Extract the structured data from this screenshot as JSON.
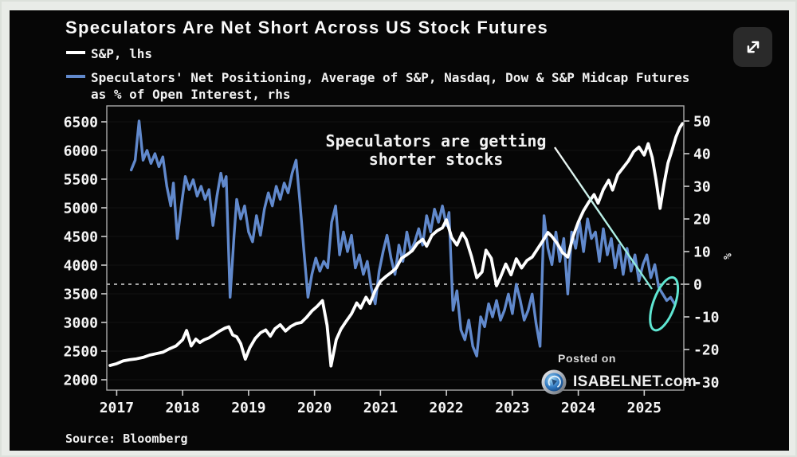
{
  "watermark": {
    "posted_on": "Posted on",
    "site": "ISABELNET.com"
  },
  "icons": {
    "expand": "diagonal-expand-arrows",
    "logo": "isabelnet-shield-swirl"
  },
  "colors": {
    "page_background": "#e9ece8",
    "chart_background": "#060606",
    "sp_line": "#ffffff",
    "speculators_line": "#6189cc",
    "highlight": "#5fe6d2",
    "zero_line": "#d8d8d8"
  },
  "chart_data": {
    "type": "line",
    "title": "Speculators Are Net Short Across US Stock Futures",
    "legend": [
      {
        "name": "S&P, lhs",
        "color": "#ffffff"
      },
      {
        "name": "Speculators' Net Positioning, Average of S&P, Nasdaq, Dow & S&P Midcap Futures\nas % of Open Interest, rhs",
        "color": "#6189cc"
      }
    ],
    "annotation": {
      "line1": "Speculators are getting",
      "line2": "shorter stocks"
    },
    "source": "Source: Bloomberg",
    "x_axis": {
      "ticks": [
        2017,
        2018,
        2019,
        2020,
        2021,
        2022,
        2023,
        2024,
        2025
      ]
    },
    "left_axis": {
      "series": "S&P index level",
      "ticks": [
        6500,
        6000,
        5500,
        5000,
        4500,
        4000,
        3500,
        3000,
        2500,
        2000
      ]
    },
    "right_axis": {
      "unit": "%",
      "ticks": [
        50,
        40,
        30,
        20,
        10,
        0,
        -10,
        -20,
        -30
      ],
      "zero_reference_line": true
    },
    "highlight": {
      "shape": "ellipse",
      "at_year": 2025.3,
      "at_value_rhs": -6,
      "color": "#5fe6d2"
    },
    "pointer_line": {
      "from": [
        684,
        172
      ],
      "to": [
        806,
        350
      ]
    },
    "series": [
      {
        "name": "S&P, lhs",
        "axis": "left",
        "color": "#ffffff",
        "points": [
          [
            2016.9,
            2250
          ],
          [
            2017.0,
            2280
          ],
          [
            2017.1,
            2330
          ],
          [
            2017.2,
            2350
          ],
          [
            2017.3,
            2365
          ],
          [
            2017.4,
            2390
          ],
          [
            2017.5,
            2430
          ],
          [
            2017.6,
            2455
          ],
          [
            2017.7,
            2480
          ],
          [
            2017.8,
            2540
          ],
          [
            2017.9,
            2590
          ],
          [
            2018.0,
            2700
          ],
          [
            2018.06,
            2860
          ],
          [
            2018.13,
            2590
          ],
          [
            2018.2,
            2710
          ],
          [
            2018.26,
            2650
          ],
          [
            2018.33,
            2700
          ],
          [
            2018.4,
            2730
          ],
          [
            2018.48,
            2790
          ],
          [
            2018.56,
            2850
          ],
          [
            2018.64,
            2900
          ],
          [
            2018.7,
            2925
          ],
          [
            2018.76,
            2780
          ],
          [
            2018.82,
            2750
          ],
          [
            2018.88,
            2630
          ],
          [
            2018.95,
            2360
          ],
          [
            2019.02,
            2560
          ],
          [
            2019.1,
            2720
          ],
          [
            2019.18,
            2820
          ],
          [
            2019.26,
            2870
          ],
          [
            2019.33,
            2760
          ],
          [
            2019.4,
            2890
          ],
          [
            2019.48,
            2960
          ],
          [
            2019.56,
            2850
          ],
          [
            2019.64,
            2930
          ],
          [
            2019.72,
            2980
          ],
          [
            2019.8,
            3000
          ],
          [
            2019.88,
            3090
          ],
          [
            2019.96,
            3200
          ],
          [
            2020.04,
            3280
          ],
          [
            2020.12,
            3380
          ],
          [
            2020.19,
            2950
          ],
          [
            2020.25,
            2240
          ],
          [
            2020.33,
            2700
          ],
          [
            2020.4,
            2880
          ],
          [
            2020.48,
            3020
          ],
          [
            2020.56,
            3150
          ],
          [
            2020.64,
            3340
          ],
          [
            2020.7,
            3250
          ],
          [
            2020.78,
            3440
          ],
          [
            2020.84,
            3330
          ],
          [
            2020.92,
            3560
          ],
          [
            2021.0,
            3720
          ],
          [
            2021.08,
            3800
          ],
          [
            2021.16,
            3870
          ],
          [
            2021.24,
            3950
          ],
          [
            2021.32,
            4120
          ],
          [
            2021.4,
            4180
          ],
          [
            2021.48,
            4250
          ],
          [
            2021.56,
            4380
          ],
          [
            2021.64,
            4450
          ],
          [
            2021.7,
            4330
          ],
          [
            2021.78,
            4520
          ],
          [
            2021.86,
            4600
          ],
          [
            2021.94,
            4650
          ],
          [
            2022.0,
            4790
          ],
          [
            2022.08,
            4480
          ],
          [
            2022.16,
            4350
          ],
          [
            2022.24,
            4560
          ],
          [
            2022.3,
            4450
          ],
          [
            2022.38,
            4150
          ],
          [
            2022.46,
            3780
          ],
          [
            2022.54,
            3880
          ],
          [
            2022.6,
            4260
          ],
          [
            2022.68,
            4120
          ],
          [
            2022.76,
            3640
          ],
          [
            2022.82,
            3790
          ],
          [
            2022.9,
            4020
          ],
          [
            2022.98,
            3830
          ],
          [
            2023.06,
            4110
          ],
          [
            2023.14,
            3950
          ],
          [
            2023.22,
            4080
          ],
          [
            2023.3,
            4140
          ],
          [
            2023.38,
            4280
          ],
          [
            2023.46,
            4420
          ],
          [
            2023.54,
            4570
          ],
          [
            2023.6,
            4500
          ],
          [
            2023.68,
            4380
          ],
          [
            2023.76,
            4220
          ],
          [
            2023.84,
            4140
          ],
          [
            2023.92,
            4500
          ],
          [
            2024.0,
            4750
          ],
          [
            2024.08,
            4950
          ],
          [
            2024.16,
            5100
          ],
          [
            2024.24,
            5230
          ],
          [
            2024.3,
            5080
          ],
          [
            2024.38,
            5320
          ],
          [
            2024.46,
            5480
          ],
          [
            2024.52,
            5310
          ],
          [
            2024.6,
            5580
          ],
          [
            2024.68,
            5700
          ],
          [
            2024.76,
            5820
          ],
          [
            2024.84,
            5980
          ],
          [
            2024.92,
            6060
          ],
          [
            2025.0,
            5920
          ],
          [
            2025.06,
            6120
          ],
          [
            2025.12,
            5880
          ],
          [
            2025.18,
            5480
          ],
          [
            2025.24,
            4990
          ],
          [
            2025.3,
            5420
          ],
          [
            2025.36,
            5780
          ],
          [
            2025.42,
            6000
          ],
          [
            2025.48,
            6230
          ],
          [
            2025.54,
            6400
          ],
          [
            2025.58,
            6470
          ]
        ]
      },
      {
        "name": "Speculators' Net Positioning, Average of S&P, Nasdaq, Dow & S&P Midcap Futures as % of Open Interest, rhs",
        "axis": "right",
        "color": "#6189cc",
        "points": [
          [
            2017.22,
            35
          ],
          [
            2017.28,
            38
          ],
          [
            2017.34,
            50
          ],
          [
            2017.4,
            38
          ],
          [
            2017.46,
            41
          ],
          [
            2017.52,
            37
          ],
          [
            2017.58,
            40
          ],
          [
            2017.64,
            36
          ],
          [
            2017.7,
            39
          ],
          [
            2017.76,
            30
          ],
          [
            2017.82,
            24
          ],
          [
            2017.86,
            31
          ],
          [
            2017.92,
            14
          ],
          [
            2017.98,
            24
          ],
          [
            2018.04,
            33
          ],
          [
            2018.1,
            29
          ],
          [
            2018.16,
            32
          ],
          [
            2018.22,
            27
          ],
          [
            2018.28,
            30
          ],
          [
            2018.34,
            26
          ],
          [
            2018.4,
            29
          ],
          [
            2018.46,
            18
          ],
          [
            2018.52,
            27
          ],
          [
            2018.58,
            34
          ],
          [
            2018.62,
            30
          ],
          [
            2018.66,
            33
          ],
          [
            2018.72,
            -4
          ],
          [
            2018.78,
            15
          ],
          [
            2018.82,
            26
          ],
          [
            2018.88,
            20
          ],
          [
            2018.94,
            24
          ],
          [
            2019.0,
            16
          ],
          [
            2019.06,
            13
          ],
          [
            2019.12,
            21
          ],
          [
            2019.18,
            15
          ],
          [
            2019.24,
            23
          ],
          [
            2019.3,
            28
          ],
          [
            2019.36,
            24
          ],
          [
            2019.42,
            30
          ],
          [
            2019.48,
            26
          ],
          [
            2019.54,
            31
          ],
          [
            2019.6,
            28
          ],
          [
            2019.66,
            34
          ],
          [
            2019.72,
            38
          ],
          [
            2019.78,
            25
          ],
          [
            2019.84,
            10
          ],
          [
            2019.9,
            -4
          ],
          [
            2019.96,
            3
          ],
          [
            2020.02,
            8
          ],
          [
            2020.08,
            4
          ],
          [
            2020.14,
            7
          ],
          [
            2020.2,
            5
          ],
          [
            2020.26,
            19
          ],
          [
            2020.32,
            24
          ],
          [
            2020.38,
            9
          ],
          [
            2020.44,
            16
          ],
          [
            2020.5,
            10
          ],
          [
            2020.56,
            15
          ],
          [
            2020.62,
            5
          ],
          [
            2020.68,
            9
          ],
          [
            2020.74,
            3
          ],
          [
            2020.8,
            7
          ],
          [
            2020.86,
            -1
          ],
          [
            2020.92,
            -6
          ],
          [
            2020.98,
            4
          ],
          [
            2021.04,
            10
          ],
          [
            2021.1,
            15
          ],
          [
            2021.16,
            8
          ],
          [
            2021.22,
            3
          ],
          [
            2021.28,
            12
          ],
          [
            2021.34,
            7
          ],
          [
            2021.4,
            16
          ],
          [
            2021.46,
            10
          ],
          [
            2021.52,
            13
          ],
          [
            2021.58,
            17
          ],
          [
            2021.64,
            12
          ],
          [
            2021.7,
            21
          ],
          [
            2021.76,
            16
          ],
          [
            2021.82,
            23
          ],
          [
            2021.88,
            19
          ],
          [
            2021.94,
            24
          ],
          [
            2022.0,
            18
          ],
          [
            2022.04,
            22
          ],
          [
            2022.1,
            -8
          ],
          [
            2022.16,
            -2
          ],
          [
            2022.22,
            -14
          ],
          [
            2022.28,
            -17
          ],
          [
            2022.34,
            -11
          ],
          [
            2022.4,
            -19
          ],
          [
            2022.46,
            -22
          ],
          [
            2022.52,
            -10
          ],
          [
            2022.58,
            -13
          ],
          [
            2022.64,
            -6
          ],
          [
            2022.7,
            -10
          ],
          [
            2022.76,
            -5
          ],
          [
            2022.82,
            -11
          ],
          [
            2022.88,
            -8
          ],
          [
            2022.94,
            -3
          ],
          [
            2023.0,
            -9
          ],
          [
            2023.06,
            0
          ],
          [
            2023.12,
            -5
          ],
          [
            2023.18,
            -11
          ],
          [
            2023.24,
            -8
          ],
          [
            2023.3,
            -3
          ],
          [
            2023.36,
            -12
          ],
          [
            2023.42,
            -19
          ],
          [
            2023.48,
            21
          ],
          [
            2023.54,
            11
          ],
          [
            2023.6,
            6
          ],
          [
            2023.66,
            16
          ],
          [
            2023.72,
            7
          ],
          [
            2023.78,
            14
          ],
          [
            2023.84,
            -3
          ],
          [
            2023.9,
            16
          ],
          [
            2023.96,
            11
          ],
          [
            2024.02,
            19
          ],
          [
            2024.08,
            10
          ],
          [
            2024.14,
            20
          ],
          [
            2024.2,
            14
          ],
          [
            2024.26,
            16
          ],
          [
            2024.32,
            7
          ],
          [
            2024.38,
            17
          ],
          [
            2024.44,
            9
          ],
          [
            2024.5,
            14
          ],
          [
            2024.56,
            5
          ],
          [
            2024.62,
            12
          ],
          [
            2024.68,
            3
          ],
          [
            2024.74,
            11
          ],
          [
            2024.8,
            4
          ],
          [
            2024.86,
            9
          ],
          [
            2024.92,
            1
          ],
          [
            2024.98,
            6
          ],
          [
            2025.04,
            9
          ],
          [
            2025.1,
            2
          ],
          [
            2025.16,
            6
          ],
          [
            2025.22,
            -1
          ],
          [
            2025.28,
            -3
          ],
          [
            2025.34,
            -5
          ],
          [
            2025.4,
            -4
          ],
          [
            2025.46,
            -6
          ]
        ]
      }
    ]
  }
}
